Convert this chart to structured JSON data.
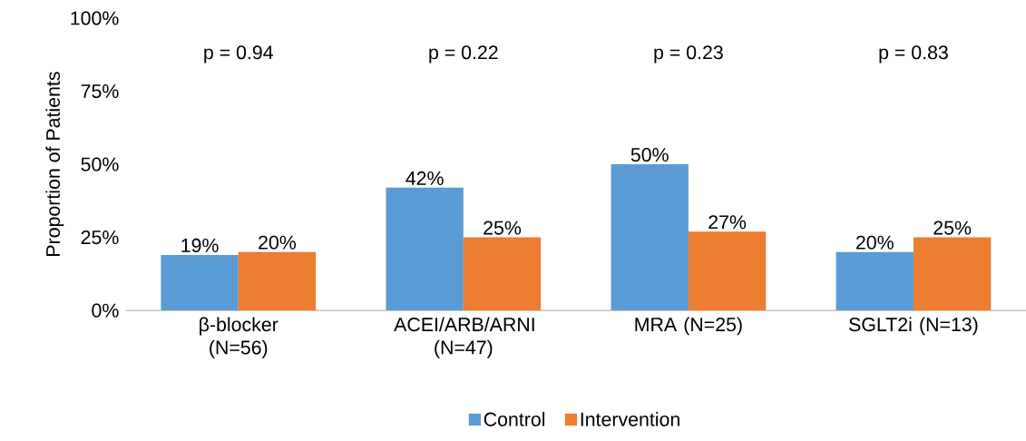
{
  "chart_data": {
    "type": "bar",
    "ylabel": "Proportion of Patients",
    "categories": [
      "β-blocker (N=56)",
      "ACEI/ARB/ARNI (N=47)",
      "MRA (N=25)",
      "SGLT2i (N=13)"
    ],
    "series": [
      {
        "name": "Control",
        "color": "#5b9bd5",
        "values": [
          19,
          42,
          50,
          20
        ],
        "value_labels": [
          "19%",
          "42%",
          "50%",
          "20%"
        ]
      },
      {
        "name": "Intervention",
        "color": "#ed7d31",
        "values": [
          20,
          25,
          27,
          25
        ],
        "value_labels": [
          "20%",
          "25%",
          "27%",
          "25%"
        ]
      }
    ],
    "ylim": [
      0,
      100
    ],
    "yticks": [
      {
        "value": 0,
        "label": "0%"
      },
      {
        "value": 25,
        "label": "25%"
      },
      {
        "value": 50,
        "label": "50%"
      },
      {
        "value": 75,
        "label": "75%"
      },
      {
        "value": 100,
        "label": "100%"
      }
    ],
    "annotations": [
      "p = 0.94",
      "p = 0.22",
      "p = 0.23",
      "p = 0.83"
    ],
    "grid": false,
    "legend": "bottom"
  }
}
